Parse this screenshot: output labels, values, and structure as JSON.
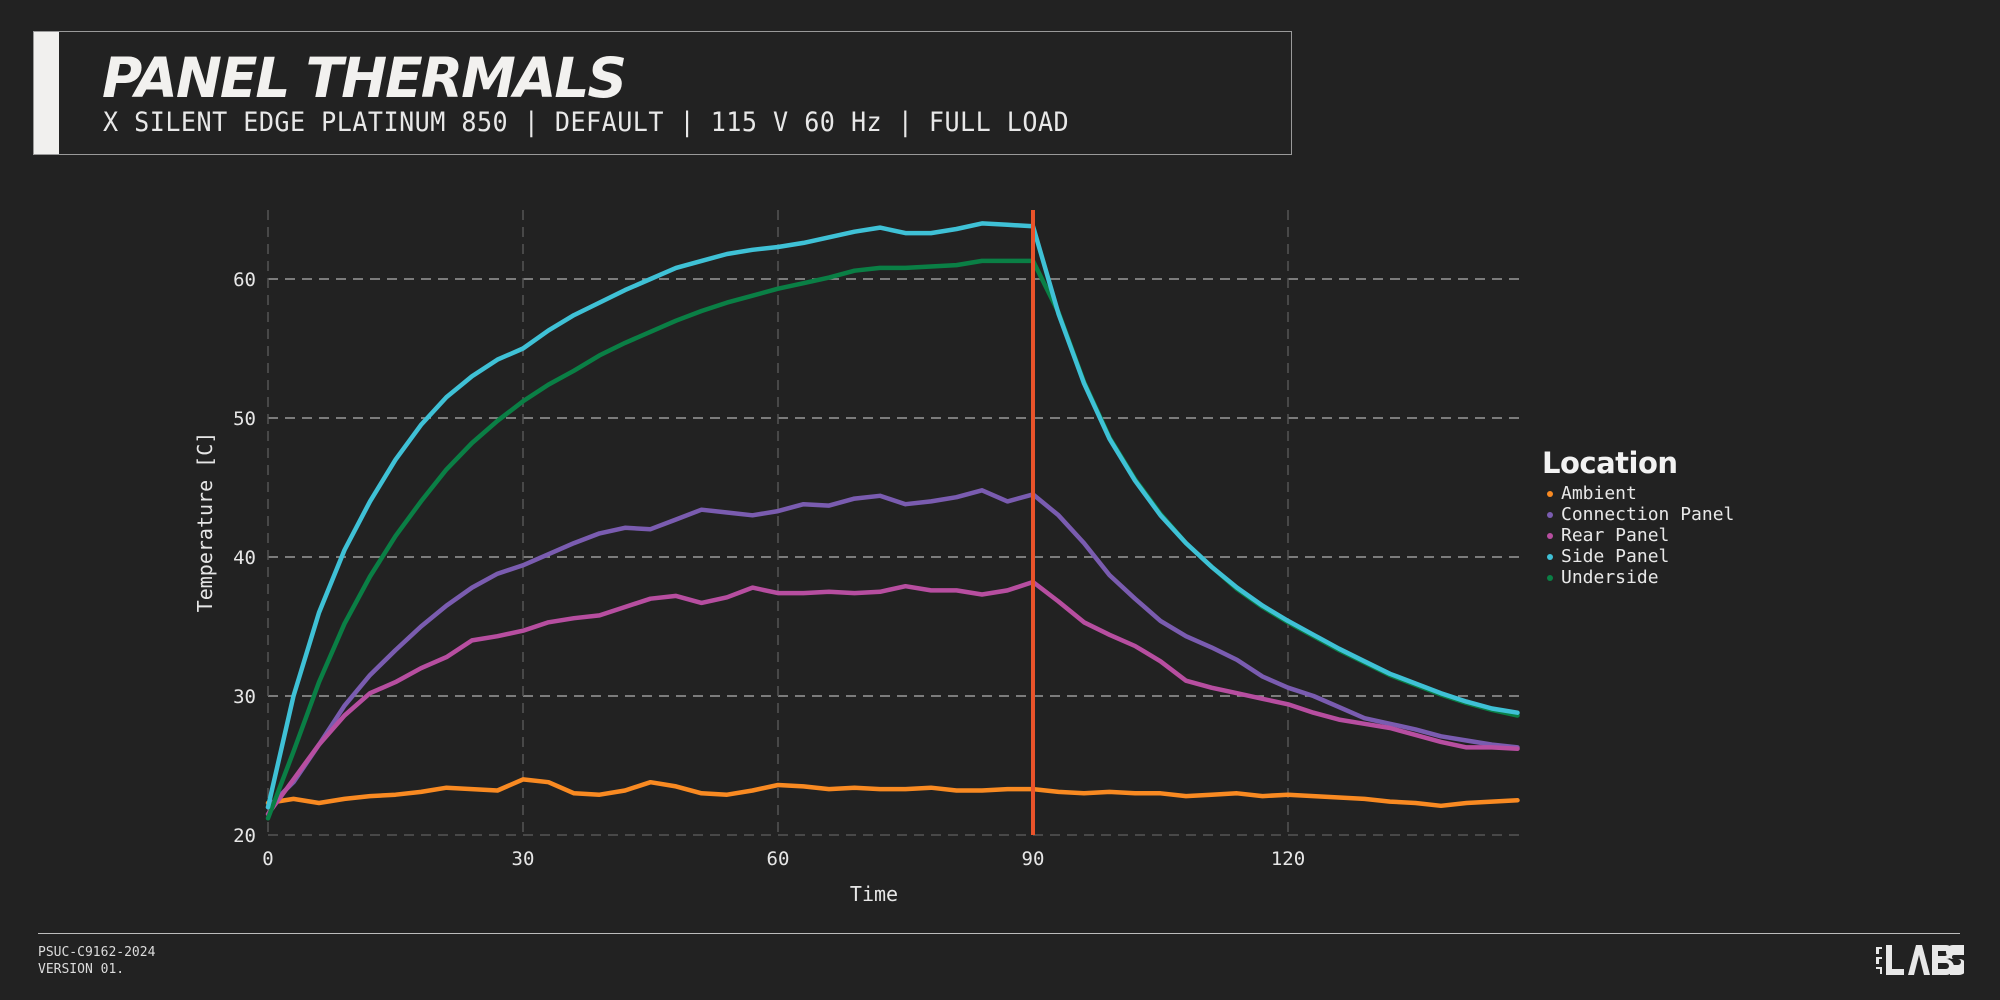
{
  "header": {
    "title": "PANEL THERMALS",
    "subtitle": "X SILENT EDGE PLATINUM 850 | DEFAULT | 115 V 60 Hz | FULL LOAD"
  },
  "footer": {
    "code": "PSUC-C9162-2024",
    "version": "VERSION 01.",
    "logo_text": "LTT LABS"
  },
  "colors": {
    "background": "#222222",
    "marker_line": "#e9532a",
    "grid": "#8a8a8a"
  },
  "chart_data": {
    "type": "line",
    "title": "PANEL THERMALS",
    "xlabel": "Time",
    "ylabel": "Temperature [C]",
    "xlim": [
      0,
      147
    ],
    "ylim": [
      20,
      65
    ],
    "xticks": [
      0,
      30,
      60,
      90,
      120
    ],
    "yticks": [
      20,
      30,
      40,
      50,
      60
    ],
    "grid": true,
    "legend_title": "Location",
    "legend_position": "right",
    "vline": {
      "x": 90,
      "color": "#e9532a"
    },
    "x": [
      0,
      3,
      6,
      9,
      12,
      15,
      18,
      21,
      24,
      27,
      30,
      33,
      36,
      39,
      42,
      45,
      48,
      51,
      54,
      57,
      60,
      63,
      66,
      69,
      72,
      75,
      78,
      81,
      84,
      87,
      90,
      93,
      96,
      99,
      102,
      105,
      108,
      111,
      114,
      117,
      120,
      123,
      126,
      129,
      132,
      135,
      138,
      141,
      144,
      147
    ],
    "series": [
      {
        "name": "Ambient",
        "color": "#f98a22",
        "values": [
          22.3,
          22.6,
          22.3,
          22.6,
          22.8,
          22.9,
          23.1,
          23.4,
          23.3,
          23.2,
          24.0,
          23.8,
          23.0,
          22.9,
          23.2,
          23.8,
          23.5,
          23.0,
          22.9,
          23.2,
          23.6,
          23.5,
          23.3,
          23.4,
          23.3,
          23.3,
          23.4,
          23.2,
          23.2,
          23.3,
          23.3,
          23.1,
          23.0,
          23.1,
          23.0,
          23.0,
          22.8,
          22.9,
          23.0,
          22.8,
          22.9,
          22.8,
          22.7,
          22.6,
          22.4,
          22.3,
          22.1,
          22.3,
          22.4,
          22.5
        ]
      },
      {
        "name": "Connection Panel",
        "color": "#7a5cb0",
        "values": [
          22.0,
          23.8,
          26.5,
          29.3,
          31.5,
          33.3,
          35.0,
          36.5,
          37.8,
          38.8,
          39.4,
          40.2,
          41.0,
          41.7,
          42.1,
          42.0,
          42.7,
          43.4,
          43.2,
          43.0,
          43.3,
          43.8,
          43.7,
          44.2,
          44.4,
          43.8,
          44.0,
          44.3,
          44.8,
          44.0,
          44.5,
          43.0,
          41.0,
          38.7,
          37.0,
          35.4,
          34.3,
          33.5,
          32.6,
          31.4,
          30.6,
          30.0,
          29.2,
          28.4,
          28.0,
          27.6,
          27.1,
          26.8,
          26.5,
          26.3
        ]
      },
      {
        "name": "Rear Panel",
        "color": "#b74ea0",
        "values": [
          21.5,
          24.0,
          26.5,
          28.6,
          30.2,
          31.0,
          32.0,
          32.8,
          34.0,
          34.3,
          34.7,
          35.3,
          35.6,
          35.8,
          36.4,
          37.0,
          37.2,
          36.7,
          37.1,
          37.8,
          37.4,
          37.4,
          37.5,
          37.4,
          37.5,
          37.9,
          37.6,
          37.6,
          37.3,
          37.6,
          38.2,
          36.8,
          35.3,
          34.4,
          33.6,
          32.5,
          31.1,
          30.6,
          30.2,
          29.8,
          29.4,
          28.8,
          28.3,
          28.0,
          27.7,
          27.2,
          26.7,
          26.3,
          26.3,
          26.2
        ]
      },
      {
        "name": "Underside",
        "color": "#0a7f45",
        "values": [
          21.2,
          26.0,
          31.0,
          35.2,
          38.6,
          41.5,
          44.0,
          46.3,
          48.2,
          49.8,
          51.2,
          52.4,
          53.4,
          54.5,
          55.4,
          56.2,
          57.0,
          57.7,
          58.3,
          58.8,
          59.3,
          59.7,
          60.1,
          60.6,
          60.8,
          60.8,
          60.9,
          61.0,
          61.3,
          61.3,
          61.3,
          57.6,
          52.6,
          48.6,
          45.6,
          43.1,
          41.0,
          39.3,
          37.7,
          36.4,
          35.3,
          34.3,
          33.3,
          32.4,
          31.5,
          30.8,
          30.1,
          29.5,
          29.0,
          28.6
        ]
      },
      {
        "name": "Side Panel",
        "color": "#3fc1d6",
        "values": [
          22.0,
          30.0,
          36.0,
          40.5,
          44.0,
          47.0,
          49.5,
          51.5,
          53.0,
          54.2,
          55.0,
          56.3,
          57.4,
          58.3,
          59.2,
          60.0,
          60.8,
          61.3,
          61.8,
          62.1,
          62.3,
          62.6,
          63.0,
          63.4,
          63.7,
          63.3,
          63.3,
          63.6,
          64.0,
          63.9,
          63.8,
          57.5,
          52.5,
          48.5,
          45.5,
          43.0,
          41.0,
          39.3,
          37.8,
          36.5,
          35.4,
          34.4,
          33.4,
          32.5,
          31.6,
          30.9,
          30.2,
          29.6,
          29.1,
          28.8
        ]
      }
    ]
  }
}
